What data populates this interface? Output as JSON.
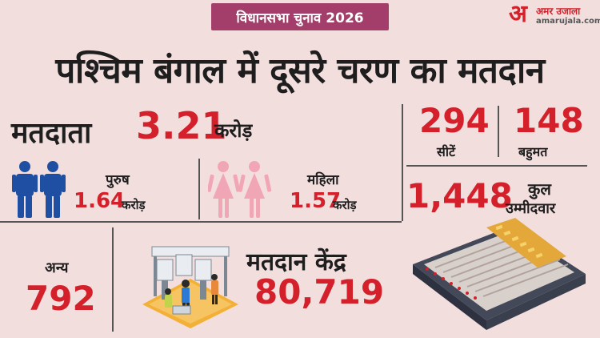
{
  "header": {
    "tag": "विधानसभा चुनाव 2026",
    "logo_mark": "अ",
    "logo_name": "अमर उजाला",
    "logo_url": "amarujala.com"
  },
  "headline": "पश्चिम बंगाल में दूसरे चरण का मतदान",
  "voters": {
    "label": "मतदाता",
    "value": "3.21",
    "unit": "करोड़"
  },
  "male": {
    "label": "पुरुष",
    "value": "1.64",
    "unit": "करोड़",
    "icon": "male-voters-icon",
    "color": "#1e4fa3"
  },
  "female": {
    "label": "महिला",
    "value": "1.57",
    "unit": "करोड़",
    "icon": "female-voters-icon",
    "color": "#f1a6b6"
  },
  "other": {
    "label": "अन्य",
    "value": "792"
  },
  "polling_booths": {
    "label": "मतदान केंद्र",
    "value": "80,719",
    "icon": "polling-booth-illustration"
  },
  "seats": {
    "value": "294",
    "label": "सीटें"
  },
  "majority": {
    "value": "148",
    "label": "बहुमत"
  },
  "candidates": {
    "value": "1,448",
    "label_line1": "कुल",
    "label_line2": "उम्मीदवार"
  },
  "evm": {
    "icon": "evm-machine-illustration"
  },
  "colors": {
    "background": "#f3dede",
    "accent_red": "#d4202a",
    "tag_bg": "#a33e6a",
    "text_dark": "#1e1e1e"
  }
}
